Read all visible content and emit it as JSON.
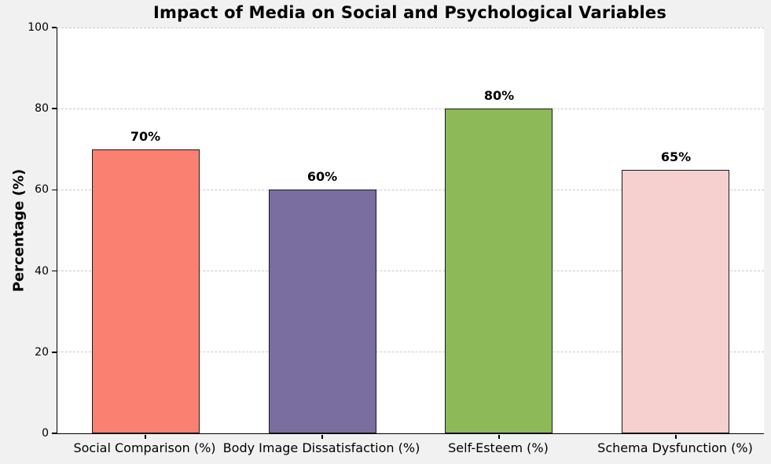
{
  "chart_data": {
    "type": "bar",
    "title": "Impact of Media on Social and Psychological Variables",
    "ylabel": "Percentage (%)",
    "xlabel": "",
    "categories": [
      "Social Comparison (%)",
      "Body Image Dissatisfaction (%)",
      "Self-Esteem (%)",
      "Schema Dysfunction (%)"
    ],
    "values": [
      70,
      60,
      80,
      65
    ],
    "value_labels": [
      "70%",
      "60%",
      "80%",
      "65%"
    ],
    "bar_colors": [
      "#FA8072",
      "#7A6DA0",
      "#8DB958",
      "#F6CFCF"
    ],
    "bar_edge_color": "#1A1A1A",
    "ylim": [
      0,
      100
    ],
    "yticks": [
      0,
      20,
      40,
      60,
      80,
      100
    ],
    "grid": "horizontal-dashed",
    "legend": "none",
    "colors": {
      "figure_bg": "#F1F1F1",
      "plot_bg": "#FFFFFF",
      "grid_line": "#C9C9C9",
      "text": "#000000"
    }
  }
}
